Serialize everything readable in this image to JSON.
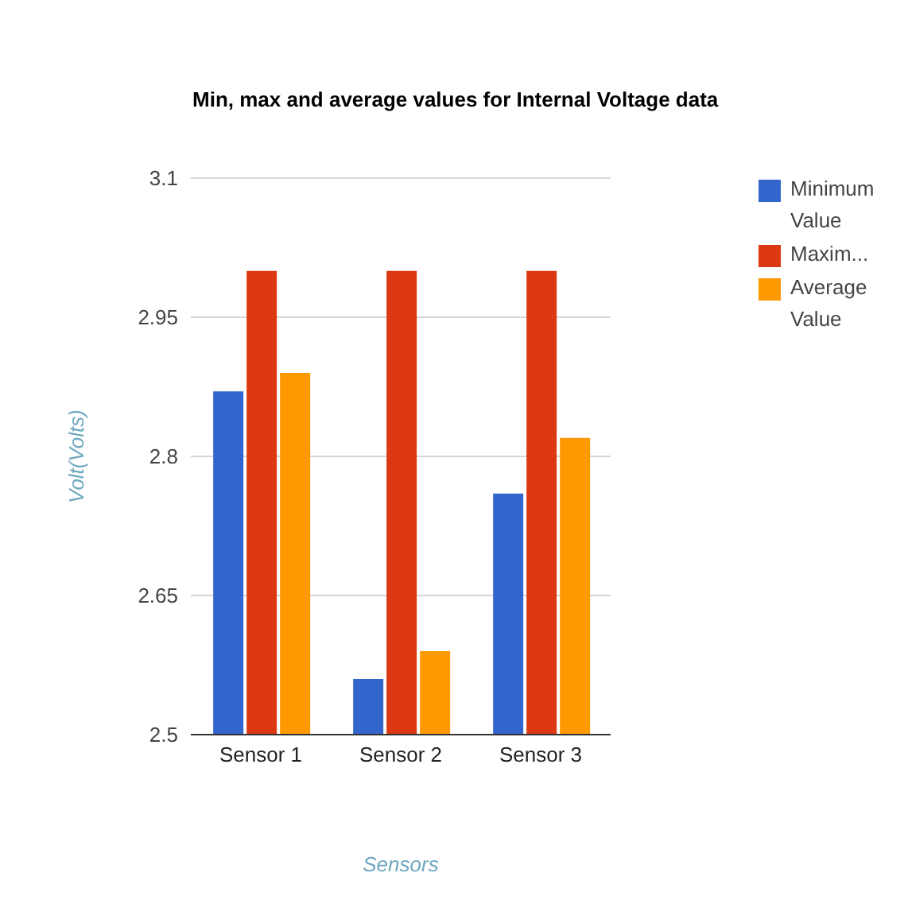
{
  "chart_data": {
    "type": "bar",
    "title": "Min, max and average values for Internal Voltage data",
    "xlabel": "Sensors",
    "ylabel": "Volt(Volts)",
    "categories": [
      "Sensor 1",
      "Sensor 2",
      "Sensor 3"
    ],
    "series": [
      {
        "name": "Minimum Value",
        "color": "#3366cc",
        "values": [
          2.87,
          2.56,
          2.76
        ]
      },
      {
        "name": "Maxim...",
        "color": "#dc3912",
        "values": [
          3.0,
          3.0,
          3.0
        ]
      },
      {
        "name": "Average Value",
        "color": "#ff9900",
        "values": [
          2.89,
          2.59,
          2.82
        ]
      }
    ],
    "ylim": [
      2.5,
      3.1
    ],
    "yticks": [
      2.5,
      2.65,
      2.8,
      2.95,
      3.1
    ],
    "grid": "y",
    "legend": "right"
  }
}
